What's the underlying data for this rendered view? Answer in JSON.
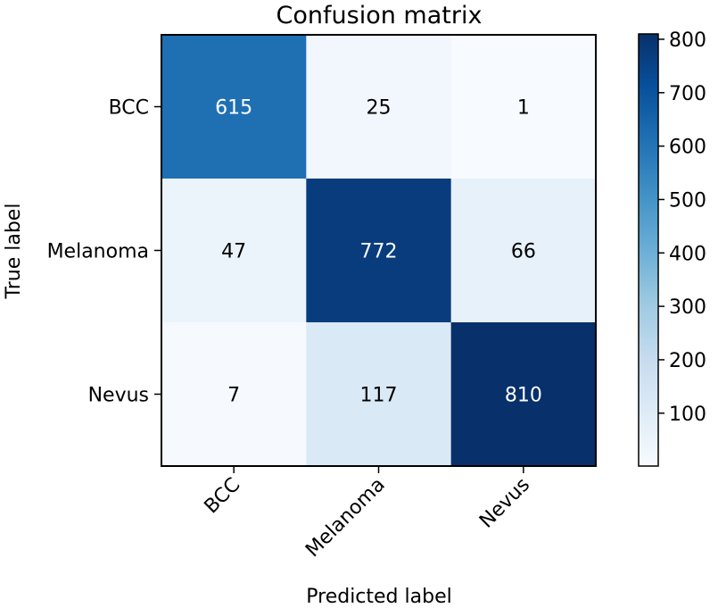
{
  "chart_data": {
    "type": "heatmap",
    "title": "Confusion matrix",
    "xlabel": "Predicted label",
    "ylabel": "True label",
    "x_categories": [
      "BCC",
      "Melanoma",
      "Nevus"
    ],
    "y_categories": [
      "BCC",
      "Melanoma",
      "Nevus"
    ],
    "values": [
      [
        615,
        25,
        1
      ],
      [
        47,
        772,
        66
      ],
      [
        7,
        117,
        810
      ]
    ],
    "colormap": "Blues",
    "color_range": [
      1,
      810
    ],
    "colorbar_ticks": [
      100,
      200,
      300,
      400,
      500,
      600,
      700,
      800
    ],
    "text_color_light": "#ffffff",
    "text_color_dark": "#000000"
  }
}
